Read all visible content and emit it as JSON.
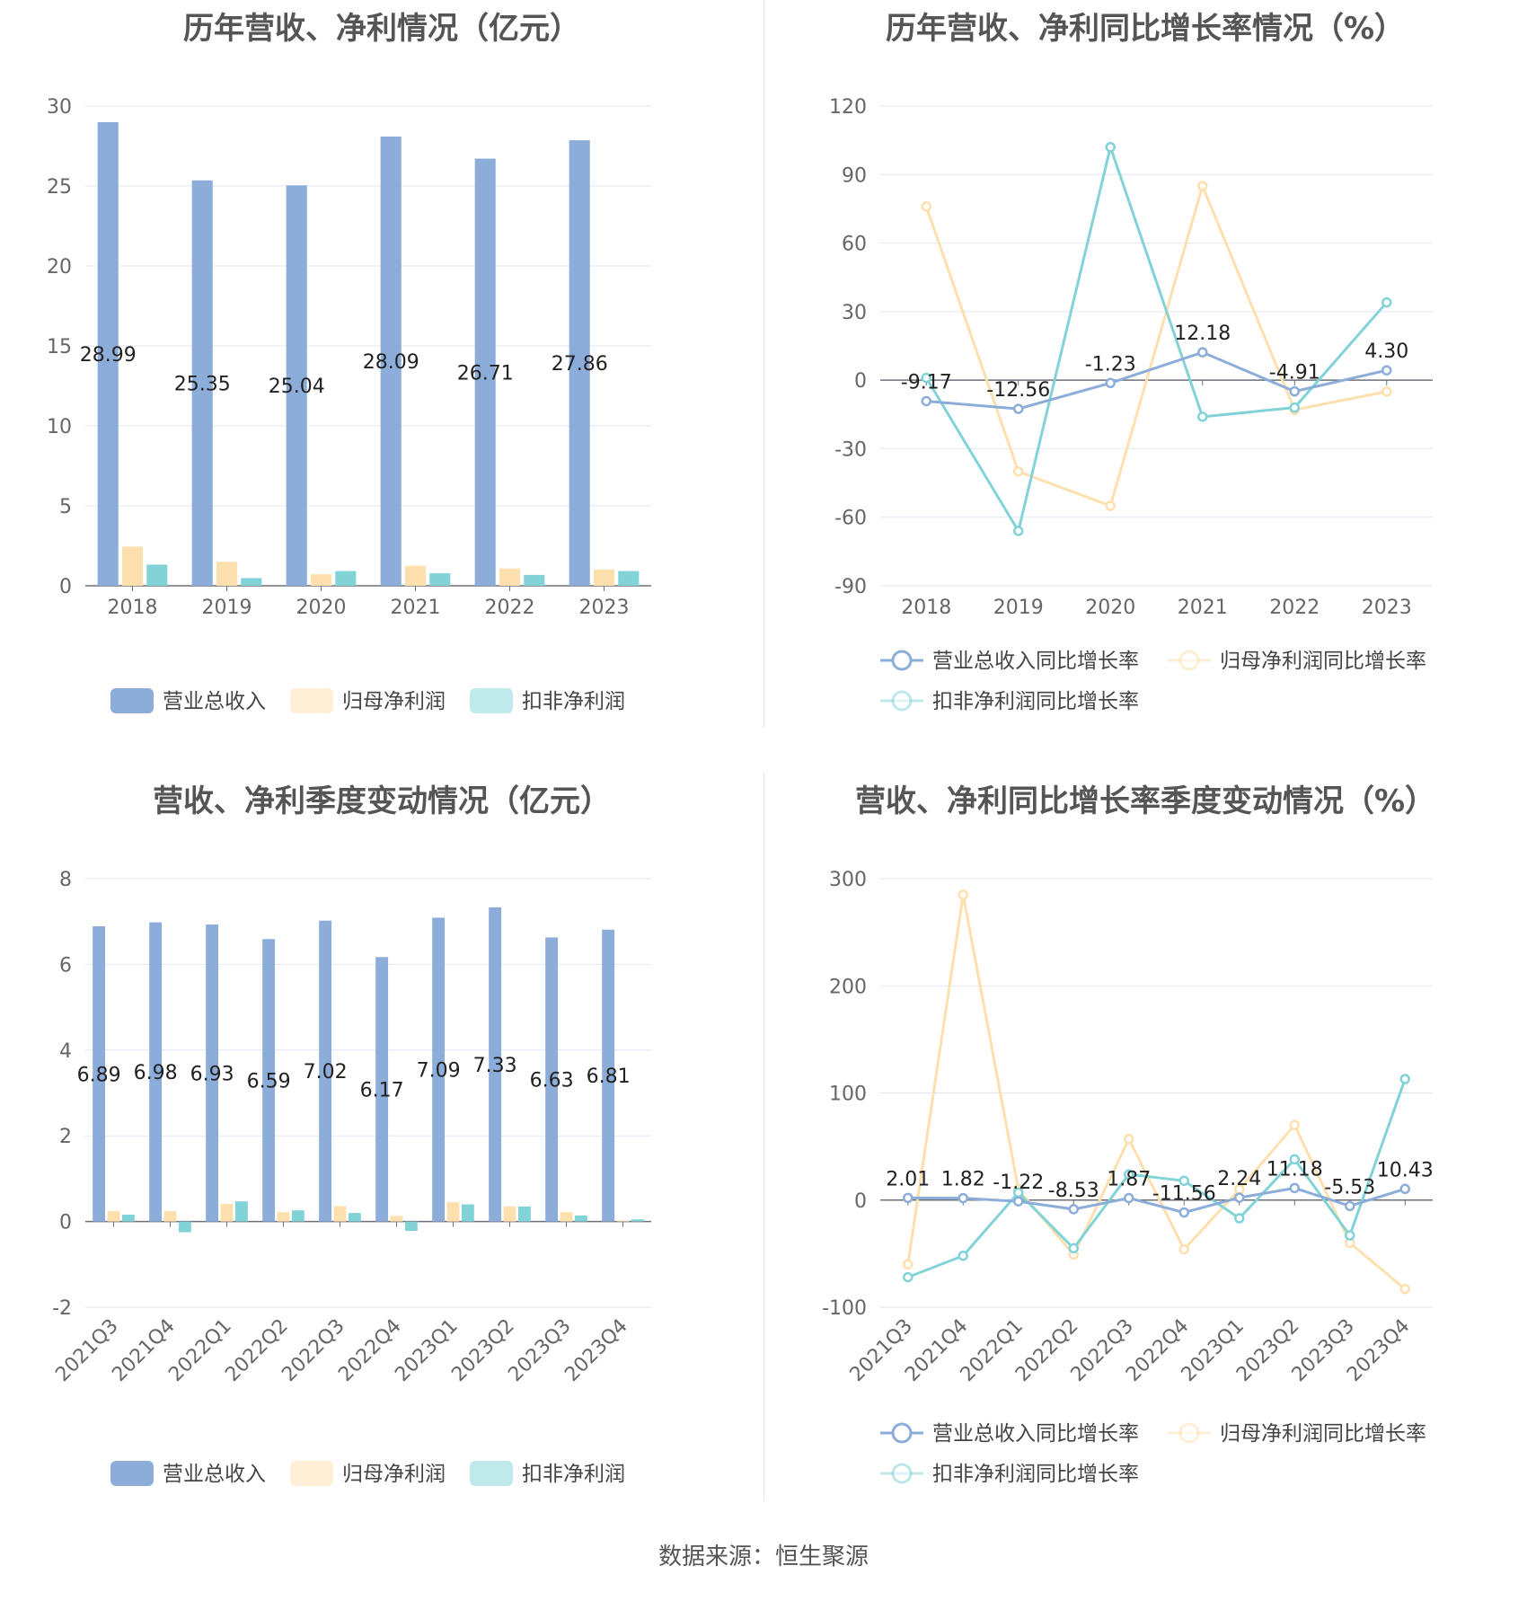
{
  "source_text": "数据来源：恒生聚源",
  "colors": {
    "revenue": "#8cadda",
    "net_profit": "#fde0ad",
    "deducted_profit": "#82d3d8",
    "grid": "#e0e6f1",
    "axis": "#6e7079"
  },
  "chart_data": [
    {
      "type": "bar",
      "title": "历年营收、净利情况（亿元）",
      "categories": [
        "2018",
        "2019",
        "2020",
        "2021",
        "2022",
        "2023"
      ],
      "ylim": [
        0,
        30
      ],
      "yticks": [
        0,
        5,
        10,
        15,
        20,
        25,
        30
      ],
      "series": [
        {
          "name": "营业总收入",
          "values": [
            28.99,
            25.35,
            25.04,
            28.09,
            26.71,
            27.86
          ],
          "labels": [
            "28.99",
            "25.35",
            "25.04",
            "28.09",
            "26.71",
            "27.86"
          ]
        },
        {
          "name": "归母净利润",
          "values": [
            2.45,
            1.5,
            0.72,
            1.25,
            1.08,
            1.02
          ]
        },
        {
          "name": "扣非净利润",
          "values": [
            1.32,
            0.48,
            0.92,
            0.78,
            0.68,
            0.92
          ]
        }
      ],
      "grid": true,
      "legend": "bottom"
    },
    {
      "type": "line",
      "title": "历年营收、净利同比增长率情况（%）",
      "categories": [
        "2018",
        "2019",
        "2020",
        "2021",
        "2022",
        "2023"
      ],
      "ylim": [
        -90,
        120
      ],
      "yticks": [
        -90,
        -60,
        -30,
        0,
        30,
        60,
        90,
        120
      ],
      "series": [
        {
          "name": "营业总收入同比增长率",
          "values": [
            -9.17,
            -12.56,
            -1.23,
            12.18,
            -4.91,
            4.3
          ],
          "labels": [
            "-9.17",
            "-12.56",
            "-1.23",
            "12.18",
            "-4.91",
            "4.30"
          ]
        },
        {
          "name": "归母净利润同比增长率",
          "values": [
            76,
            -40,
            -55,
            85,
            -13,
            -5
          ]
        },
        {
          "name": "扣非净利润同比增长率",
          "values": [
            1,
            -66,
            102,
            -16,
            -12,
            34
          ]
        }
      ],
      "grid": true,
      "legend": "bottom"
    },
    {
      "type": "bar",
      "title": "营收、净利季度变动情况（亿元）",
      "categories": [
        "2021Q3",
        "2021Q4",
        "2022Q1",
        "2022Q2",
        "2022Q3",
        "2022Q4",
        "2023Q1",
        "2023Q2",
        "2023Q3",
        "2023Q4"
      ],
      "ylim": [
        -2,
        8
      ],
      "yticks": [
        -2,
        0,
        2,
        4,
        6,
        8
      ],
      "series": [
        {
          "name": "营业总收入",
          "values": [
            6.89,
            6.98,
            6.93,
            6.59,
            7.02,
            6.17,
            7.09,
            7.33,
            6.63,
            6.81
          ],
          "labels": [
            "6.89",
            "6.98",
            "6.93",
            "6.59",
            "7.02",
            "6.17",
            "7.09",
            "7.33",
            "6.63",
            "6.81"
          ]
        },
        {
          "name": "归母净利润",
          "values": [
            0.24,
            0.24,
            0.41,
            0.22,
            0.36,
            0.13,
            0.45,
            0.35,
            0.22,
            0.02
          ]
        },
        {
          "name": "扣非净利润",
          "values": [
            0.16,
            -0.25,
            0.47,
            0.26,
            0.2,
            -0.22,
            0.4,
            0.35,
            0.14,
            0.05
          ]
        }
      ],
      "grid": true,
      "legend": "bottom"
    },
    {
      "type": "line",
      "title": "营收、净利同比增长率季度变动情况（%）",
      "categories": [
        "2021Q3",
        "2021Q4",
        "2022Q1",
        "2022Q2",
        "2022Q3",
        "2022Q4",
        "2023Q1",
        "2023Q2",
        "2023Q3",
        "2023Q4"
      ],
      "ylim": [
        -100,
        300
      ],
      "yticks": [
        -100,
        0,
        100,
        200,
        300
      ],
      "series": [
        {
          "name": "营业总收入同比增长率",
          "values": [
            2.01,
            1.82,
            -1.22,
            -8.53,
            1.87,
            -11.56,
            2.24,
            11.18,
            -5.53,
            10.43
          ],
          "labels": [
            "2.01",
            "1.82",
            "-1.22",
            "-8.53",
            "1.87",
            "-11.56",
            "2.24",
            "11.18",
            "-5.53",
            "10.43"
          ]
        },
        {
          "name": "归母净利润同比增长率",
          "values": [
            -60,
            285,
            10,
            -51,
            57,
            -46,
            10,
            70,
            -40,
            -83
          ]
        },
        {
          "name": "扣非净利润同比增长率",
          "values": [
            -72,
            -52,
            7,
            -45,
            24,
            18,
            -17,
            38,
            -33,
            113
          ]
        }
      ],
      "grid": true,
      "legend": "bottom"
    }
  ]
}
